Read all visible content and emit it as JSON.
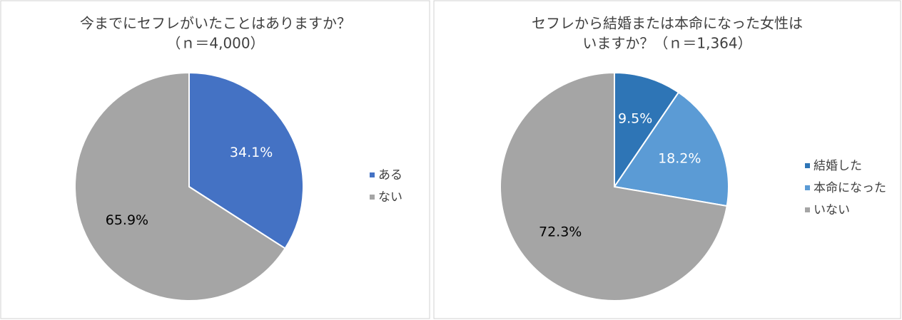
{
  "chart_data": [
    {
      "type": "pie",
      "title": [
        "今までにセフレがいたことはありますか？",
        "（ｎ＝4,000）"
      ],
      "categories": [
        "ある",
        "ない"
      ],
      "values": [
        34.1,
        65.9
      ],
      "value_labels": [
        "34.1%",
        "65.9%"
      ],
      "colors": [
        "#4472c4",
        "#a5a5a5"
      ],
      "legend": "right"
    },
    {
      "type": "pie",
      "title": [
        "セフレから結婚または本命になった女性は",
        "いますか？（ｎ＝1,364）"
      ],
      "categories": [
        "結婚した",
        "本命になった",
        "いない"
      ],
      "values": [
        9.5,
        18.2,
        72.3
      ],
      "value_labels": [
        "9.5%",
        "18.2%",
        "72.3%"
      ],
      "colors": [
        "#2e75b6",
        "#5b9bd5",
        "#a5a5a5"
      ],
      "legend": "right"
    }
  ]
}
